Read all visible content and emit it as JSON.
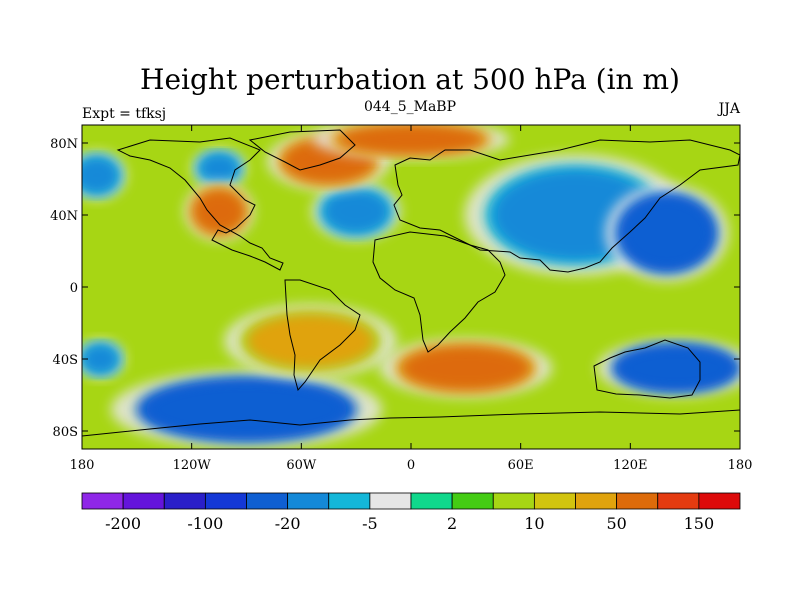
{
  "chart_data": {
    "type": "heatmap",
    "title": "Height perturbation at 500 hPa (in m)",
    "left_label": "Expt = tfksj",
    "center_label": "044_5_MaBP",
    "right_label": "JJA",
    "x_range": [
      -180,
      180
    ],
    "y_range": [
      -90,
      90
    ],
    "x_ticks": [
      {
        "value": -180,
        "label": "180"
      },
      {
        "value": -120,
        "label": "120W"
      },
      {
        "value": -60,
        "label": "60W"
      },
      {
        "value": 0,
        "label": "0"
      },
      {
        "value": 60,
        "label": "60E"
      },
      {
        "value": 120,
        "label": "120E"
      },
      {
        "value": 180,
        "label": "180"
      }
    ],
    "y_ticks": [
      {
        "value": 80,
        "label": "80N"
      },
      {
        "value": 40,
        "label": "40N"
      },
      {
        "value": 0,
        "label": "0"
      },
      {
        "value": -40,
        "label": "40S"
      },
      {
        "value": -80,
        "label": "80S"
      }
    ],
    "colorbar": {
      "levels": [
        -200,
        -150,
        -100,
        -50,
        -20,
        -10,
        -5,
        -2,
        2,
        5,
        10,
        20,
        50,
        100,
        150,
        200
      ],
      "colors": [
        "#8f27e8",
        "#6414db",
        "#2a1fc9",
        "#1438d6",
        "#0f5fd2",
        "#1489d8",
        "#14b7d9",
        "#e6e6e6",
        "#10d88c",
        "#44cc14",
        "#a7d614",
        "#d2c40f",
        "#e0a30d",
        "#dd6b0a",
        "#e43b10",
        "#dd0a0a"
      ],
      "labeled": [
        {
          "index": 1,
          "label": "-200"
        },
        {
          "index": 3,
          "label": "-100"
        },
        {
          "index": 5,
          "label": "-20"
        },
        {
          "index": 7,
          "label": "-5"
        },
        {
          "index": 9,
          "label": "2"
        },
        {
          "index": 11,
          "label": "10"
        },
        {
          "index": 13,
          "label": "50"
        },
        {
          "index": 15,
          "label": "150"
        }
      ]
    },
    "field_regions": [
      {
        "name": "north-pacific-west-low",
        "lon": -172,
        "lat": 62,
        "rx": 12,
        "ry": 10,
        "value": -20
      },
      {
        "name": "north-america-east-low",
        "lon": -105,
        "lat": 66,
        "rx": 11,
        "ry": 8,
        "value": -20
      },
      {
        "name": "north-atlantic-low",
        "lon": -30,
        "lat": 42,
        "rx": 18,
        "ry": 12,
        "value": -20
      },
      {
        "name": "central-asia-low",
        "lon": 90,
        "lat": 40,
        "rx": 45,
        "ry": 25,
        "value": -20
      },
      {
        "name": "north-pacific-low",
        "lon": 140,
        "lat": 30,
        "rx": 25,
        "ry": 20,
        "value": -50
      },
      {
        "name": "southern-ocean-low",
        "lon": -90,
        "lat": -68,
        "rx": 55,
        "ry": 16,
        "value": -50
      },
      {
        "name": "indian-ocean-low",
        "lon": 145,
        "lat": -45,
        "rx": 32,
        "ry": 12,
        "value": -50
      },
      {
        "name": "south-pacific-west-low",
        "lon": -170,
        "lat": -40,
        "rx": 10,
        "ry": 8,
        "value": -20
      },
      {
        "name": "greenland-high",
        "lon": -45,
        "lat": 70,
        "rx": 25,
        "ry": 12,
        "value": 50
      },
      {
        "name": "north-america-high",
        "lon": -105,
        "lat": 42,
        "rx": 14,
        "ry": 12,
        "value": 50
      },
      {
        "name": "south-america-high",
        "lon": -55,
        "lat": -30,
        "rx": 35,
        "ry": 15,
        "value": 20
      },
      {
        "name": "south-atlantic-high",
        "lon": 30,
        "lat": -45,
        "rx": 35,
        "ry": 12,
        "value": 50
      },
      {
        "name": "arctic-high",
        "lon": 0,
        "lat": 82,
        "rx": 40,
        "ry": 8,
        "value": 50
      }
    ]
  }
}
